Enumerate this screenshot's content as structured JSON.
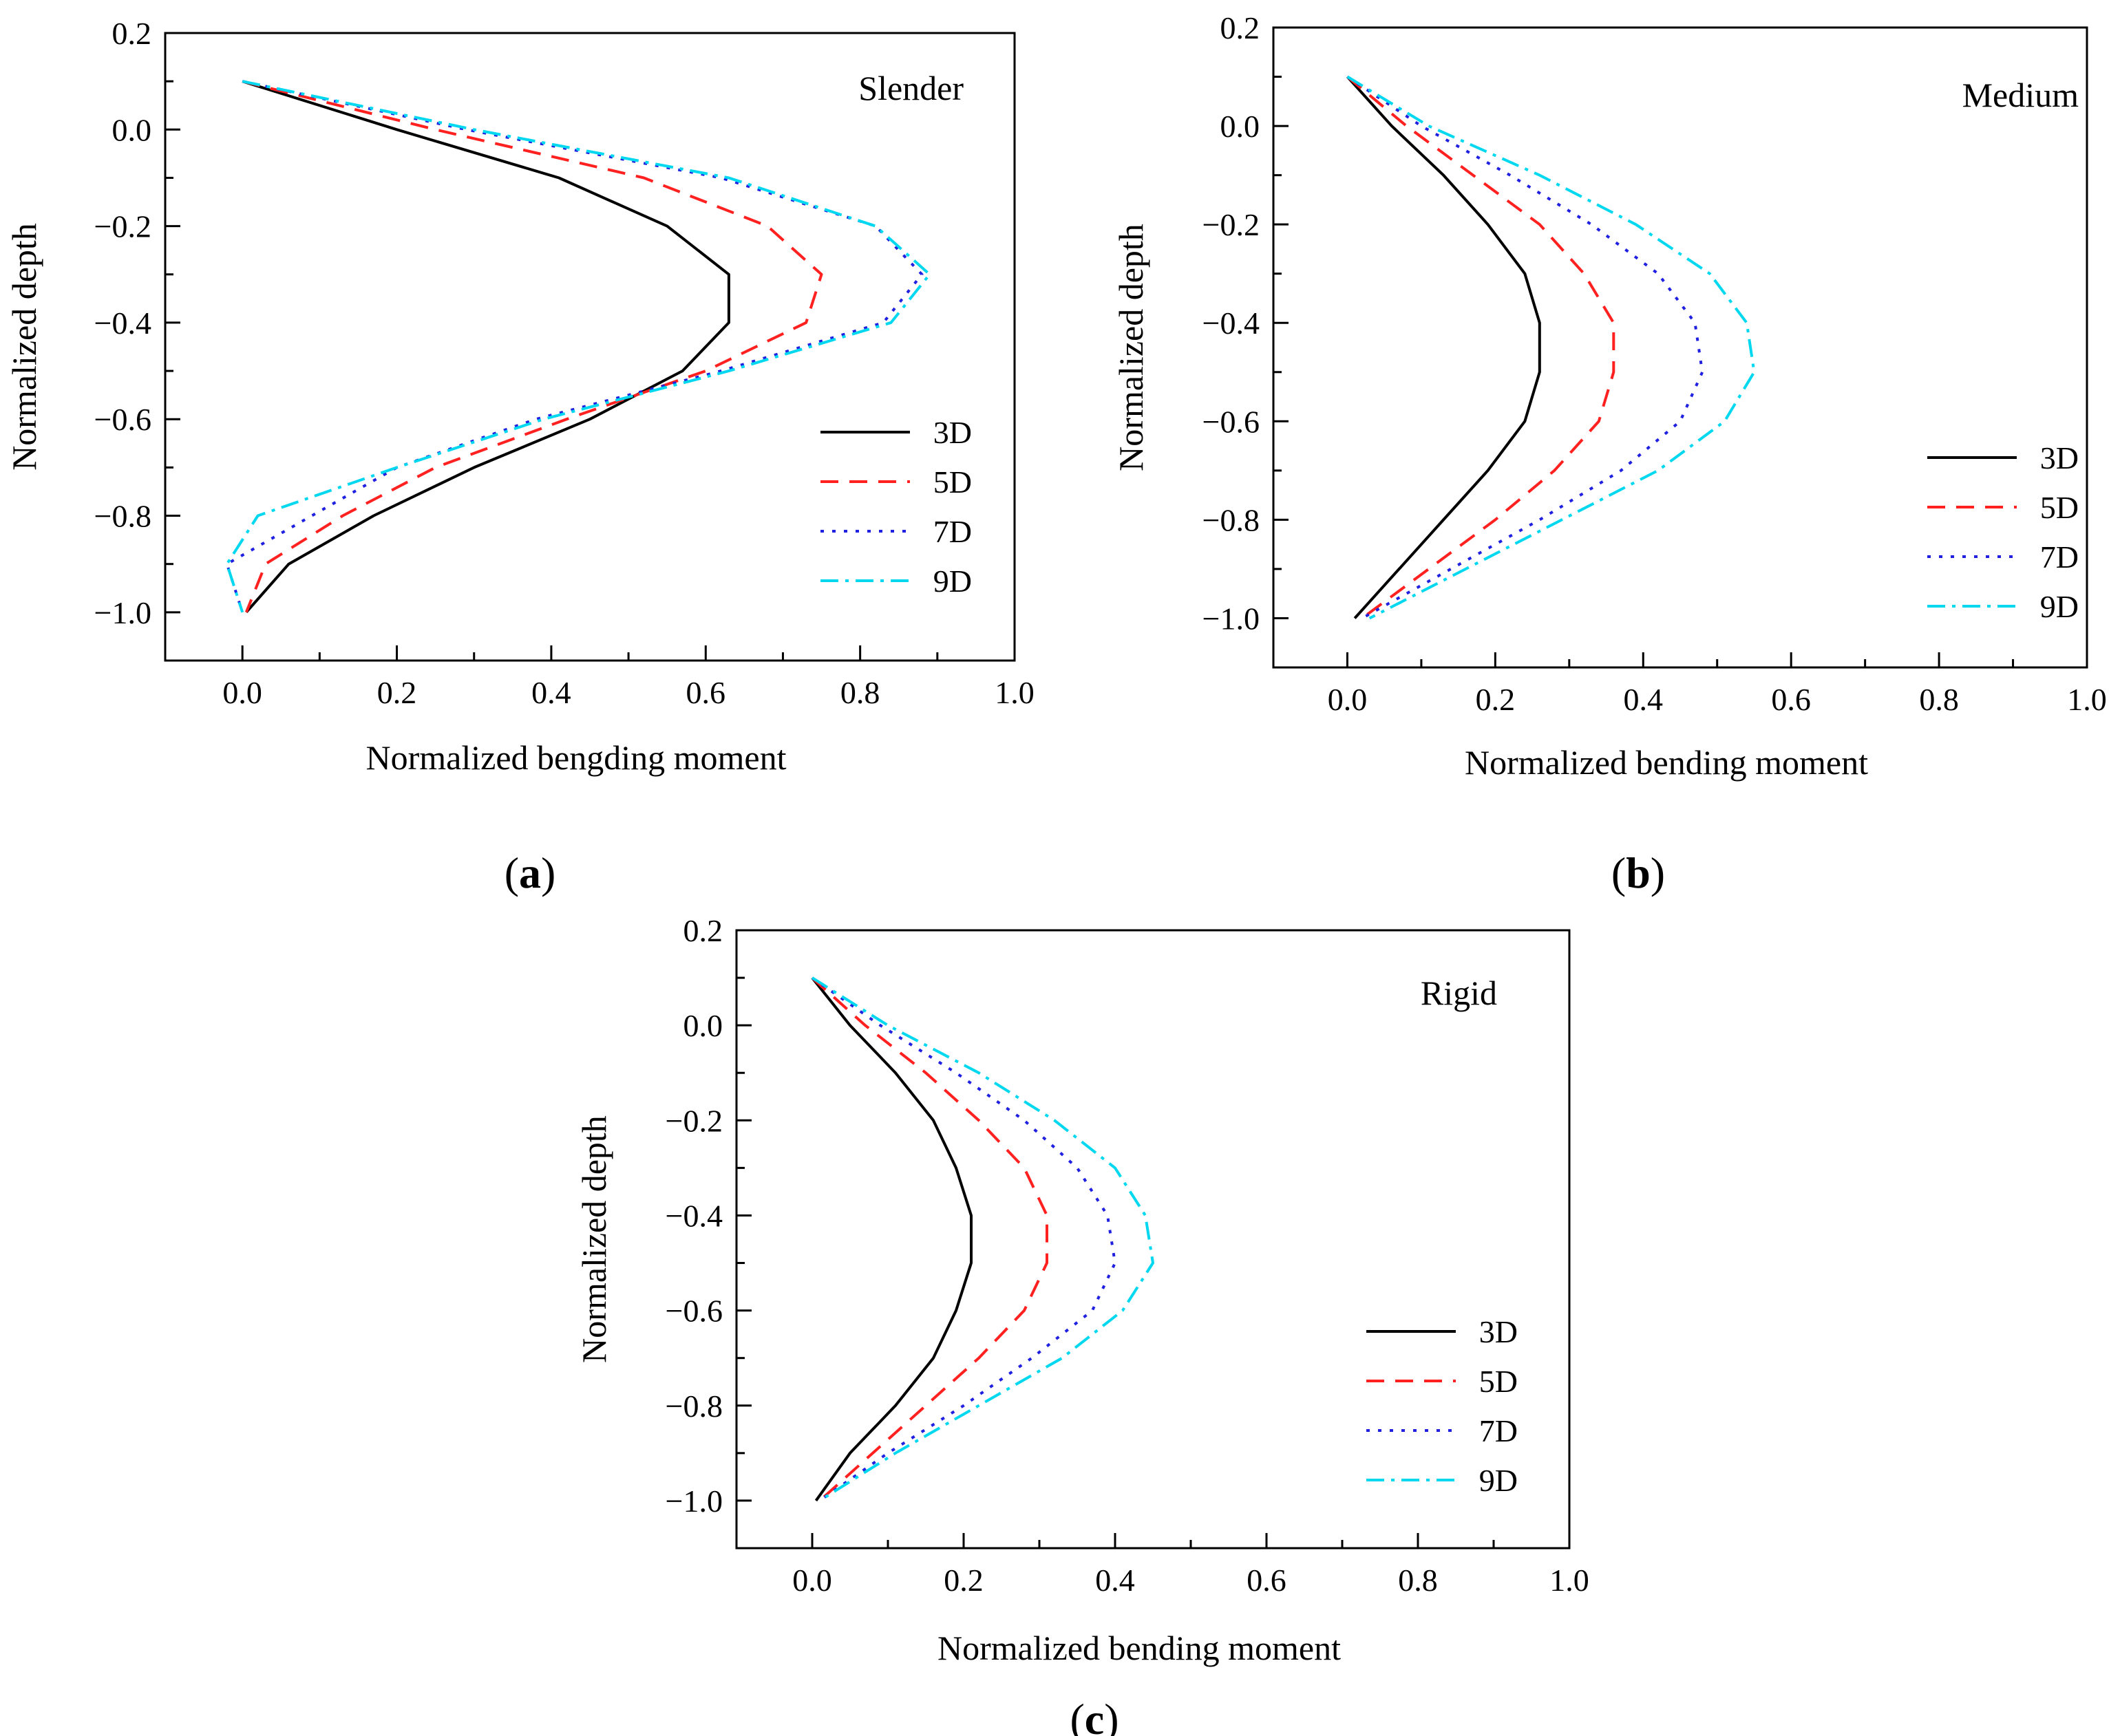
{
  "figure": {
    "labels": [
      "a",
      "b",
      "c"
    ]
  },
  "chart_data": [
    {
      "type": "line",
      "panel_label": "a",
      "title": "Slender",
      "xlabel": "Normalized bengding moment",
      "ylabel": "Normalized depth",
      "xlim": [
        -0.1,
        1.0
      ],
      "ylim": [
        -1.1,
        0.2
      ],
      "xticks": [
        "0.0",
        "0.2",
        "0.4",
        "0.6",
        "0.8",
        "1.0"
      ],
      "yticks": [
        "0.2",
        "0.0",
        "−0.2",
        "−0.4",
        "−0.6",
        "−0.8",
        "−1.0"
      ],
      "legend_position": "bottom-right",
      "series": [
        {
          "name": "3D",
          "color": "#000000",
          "dash": "solid",
          "x": [
            0.0,
            0.2,
            0.41,
            0.55,
            0.63,
            0.63,
            0.57,
            0.45,
            0.3,
            0.17,
            0.06,
            0.005
          ],
          "y": [
            0.1,
            0.0,
            -0.1,
            -0.2,
            -0.3,
            -0.4,
            -0.5,
            -0.6,
            -0.7,
            -0.8,
            -0.9,
            -1.0
          ]
        },
        {
          "name": "5D",
          "color": "#ff2020",
          "dash": "dashed",
          "x": [
            0.0,
            0.25,
            0.52,
            0.68,
            0.75,
            0.73,
            0.6,
            0.42,
            0.25,
            0.13,
            0.03,
            0.005
          ],
          "y": [
            0.1,
            0.0,
            -0.1,
            -0.2,
            -0.3,
            -0.4,
            -0.5,
            -0.6,
            -0.7,
            -0.8,
            -0.9,
            -1.0
          ]
        },
        {
          "name": "7D",
          "color": "#2020e0",
          "dash": "dotted",
          "x": [
            0.0,
            0.29,
            0.62,
            0.82,
            0.88,
            0.83,
            0.62,
            0.38,
            0.2,
            0.09,
            -0.02,
            0.0
          ],
          "y": [
            0.1,
            0.0,
            -0.1,
            -0.2,
            -0.3,
            -0.4,
            -0.5,
            -0.6,
            -0.7,
            -0.8,
            -0.9,
            -1.0
          ]
        },
        {
          "name": "9D",
          "color": "#00d8f0",
          "dash": "dashdot",
          "x": [
            0.0,
            0.3,
            0.63,
            0.82,
            0.89,
            0.84,
            0.63,
            0.39,
            0.2,
            0.02,
            -0.02,
            0.0
          ],
          "y": [
            0.1,
            0.0,
            -0.1,
            -0.2,
            -0.3,
            -0.4,
            -0.5,
            -0.6,
            -0.7,
            -0.8,
            -0.9,
            -1.0
          ]
        }
      ]
    },
    {
      "type": "line",
      "panel_label": "b",
      "title": "Medium",
      "xlabel": "Normalized bending moment",
      "ylabel": "Normalized depth",
      "xlim": [
        -0.1,
        1.0
      ],
      "ylim": [
        -1.1,
        0.2
      ],
      "xticks": [
        "0.0",
        "0.2",
        "0.4",
        "0.6",
        "0.8",
        "1.0"
      ],
      "yticks": [
        "0.2",
        "0.0",
        "−0.2",
        "−0.4",
        "−0.6",
        "−0.8",
        "−1.0"
      ],
      "legend_position": "bottom-right",
      "series": [
        {
          "name": "3D",
          "color": "#000000",
          "dash": "solid",
          "x": [
            0.0,
            0.06,
            0.13,
            0.19,
            0.24,
            0.26,
            0.26,
            0.24,
            0.19,
            0.13,
            0.07,
            0.01
          ],
          "y": [
            0.1,
            0.0,
            -0.1,
            -0.2,
            -0.3,
            -0.4,
            -0.5,
            -0.6,
            -0.7,
            -0.8,
            -0.9,
            -1.0
          ]
        },
        {
          "name": "5D",
          "color": "#ff2020",
          "dash": "dashed",
          "x": [
            0.0,
            0.08,
            0.17,
            0.26,
            0.32,
            0.36,
            0.36,
            0.34,
            0.28,
            0.2,
            0.11,
            0.02
          ],
          "y": [
            0.1,
            0.0,
            -0.1,
            -0.2,
            -0.3,
            -0.4,
            -0.5,
            -0.6,
            -0.7,
            -0.8,
            -0.9,
            -1.0
          ]
        },
        {
          "name": "7D",
          "color": "#2020e0",
          "dash": "dotted",
          "x": [
            0.0,
            0.1,
            0.22,
            0.33,
            0.42,
            0.47,
            0.48,
            0.45,
            0.37,
            0.26,
            0.14,
            0.02
          ],
          "y": [
            0.1,
            0.0,
            -0.1,
            -0.2,
            -0.3,
            -0.4,
            -0.5,
            -0.6,
            -0.7,
            -0.8,
            -0.9,
            -1.0
          ]
        },
        {
          "name": "9D",
          "color": "#00d8f0",
          "dash": "dashdot",
          "x": [
            0.0,
            0.11,
            0.26,
            0.39,
            0.49,
            0.54,
            0.55,
            0.51,
            0.42,
            0.29,
            0.16,
            0.03
          ],
          "y": [
            0.1,
            0.0,
            -0.1,
            -0.2,
            -0.3,
            -0.4,
            -0.5,
            -0.6,
            -0.7,
            -0.8,
            -0.9,
            -1.0
          ]
        }
      ]
    },
    {
      "type": "line",
      "panel_label": "c",
      "title": "Rigid",
      "xlabel": "Normalized bending moment",
      "ylabel": "Normalized depth",
      "xlim": [
        -0.1,
        1.0
      ],
      "ylim": [
        -1.1,
        0.2
      ],
      "xticks": [
        "0.0",
        "0.2",
        "0.4",
        "0.6",
        "0.8",
        "1.0"
      ],
      "yticks": [
        "0.2",
        "0.0",
        "−0.2",
        "−0.4",
        "−0.6",
        "−0.8",
        "−1.0"
      ],
      "legend_position": "bottom-right",
      "series": [
        {
          "name": "3D",
          "color": "#000000",
          "dash": "solid",
          "x": [
            0.0,
            0.05,
            0.11,
            0.16,
            0.19,
            0.21,
            0.21,
            0.19,
            0.16,
            0.11,
            0.05,
            0.005
          ],
          "y": [
            0.1,
            0.0,
            -0.1,
            -0.2,
            -0.3,
            -0.4,
            -0.5,
            -0.6,
            -0.7,
            -0.8,
            -0.9,
            -1.0
          ]
        },
        {
          "name": "5D",
          "color": "#ff2020",
          "dash": "dashed",
          "x": [
            0.0,
            0.07,
            0.15,
            0.22,
            0.28,
            0.31,
            0.31,
            0.28,
            0.22,
            0.15,
            0.08,
            0.01
          ],
          "y": [
            0.1,
            0.0,
            -0.1,
            -0.2,
            -0.3,
            -0.4,
            -0.5,
            -0.6,
            -0.7,
            -0.8,
            -0.9,
            -1.0
          ]
        },
        {
          "name": "7D",
          "color": "#2020e0",
          "dash": "dotted",
          "x": [
            0.0,
            0.09,
            0.19,
            0.28,
            0.35,
            0.39,
            0.4,
            0.37,
            0.29,
            0.2,
            0.1,
            0.01
          ],
          "y": [
            0.1,
            0.0,
            -0.1,
            -0.2,
            -0.3,
            -0.4,
            -0.5,
            -0.6,
            -0.7,
            -0.8,
            -0.9,
            -1.0
          ]
        },
        {
          "name": "9D",
          "color": "#00d8f0",
          "dash": "dashdot",
          "x": [
            0.0,
            0.1,
            0.22,
            0.32,
            0.4,
            0.44,
            0.45,
            0.41,
            0.33,
            0.22,
            0.11,
            0.01
          ],
          "y": [
            0.1,
            0.0,
            -0.1,
            -0.2,
            -0.3,
            -0.4,
            -0.5,
            -0.6,
            -0.7,
            -0.8,
            -0.9,
            -1.0
          ]
        }
      ]
    }
  ]
}
